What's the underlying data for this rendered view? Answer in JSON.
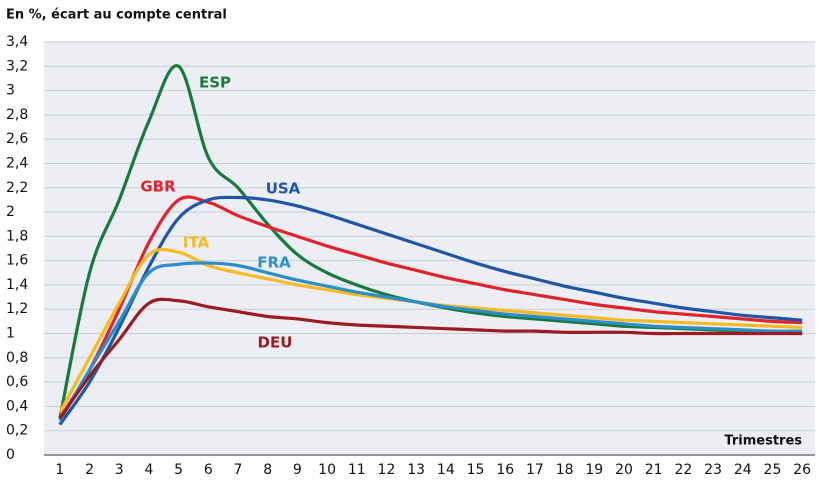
{
  "chart_data": {
    "type": "line",
    "title": "En %, écart au compte central",
    "x_label": "Trimestres",
    "categories": [
      "1",
      "2",
      "3",
      "4",
      "5",
      "6",
      "7",
      "8",
      "9",
      "10",
      "11",
      "12",
      "13",
      "14",
      "15",
      "16",
      "17",
      "18",
      "19",
      "20",
      "21",
      "22",
      "23",
      "24",
      "25",
      "26"
    ],
    "ylim": [
      0,
      3.4
    ],
    "yticks": [
      0,
      {
        "value": 0.2,
        "label": "0,2"
      },
      {
        "value": 0.4,
        "label": "0,4"
      },
      {
        "value": 0.6,
        "label": "0,6"
      },
      {
        "value": 0.8,
        "label": "0,8"
      },
      1,
      {
        "value": 1.2,
        "label": "1,2"
      },
      {
        "value": 1.4,
        "label": "1,4"
      },
      {
        "value": 1.6,
        "label": "1,6"
      },
      {
        "value": 1.8,
        "label": "1,8"
      },
      2,
      {
        "value": 2.2,
        "label": "2,2"
      },
      {
        "value": 2.4,
        "label": "2,4"
      },
      {
        "value": 2.6,
        "label": "2,6"
      },
      {
        "value": 2.8,
        "label": "2,8"
      },
      3,
      {
        "value": 3.2,
        "label": "3,2"
      },
      {
        "value": 3.4,
        "label": "3,4"
      }
    ],
    "grid": true,
    "series": [
      {
        "name": "ESP",
        "color": "#1a7a3c",
        "values": [
          0.3,
          1.5,
          2.1,
          2.75,
          3.2,
          2.45,
          2.2,
          1.9,
          1.65,
          1.5,
          1.4,
          1.32,
          1.26,
          1.21,
          1.17,
          1.14,
          1.12,
          1.1,
          1.08,
          1.06,
          1.05,
          1.04,
          1.03,
          1.02,
          1.01,
          1.0
        ]
      },
      {
        "name": "GBR",
        "color": "#e3232b",
        "values": [
          0.3,
          0.7,
          1.2,
          1.75,
          2.1,
          2.08,
          1.97,
          1.88,
          1.8,
          1.72,
          1.65,
          1.58,
          1.52,
          1.46,
          1.41,
          1.36,
          1.32,
          1.28,
          1.24,
          1.21,
          1.18,
          1.16,
          1.14,
          1.12,
          1.1,
          1.09
        ]
      },
      {
        "name": "USA",
        "color": "#1f57a5",
        "values": [
          0.25,
          0.6,
          1.05,
          1.55,
          1.95,
          2.1,
          2.12,
          2.1,
          2.05,
          1.98,
          1.9,
          1.82,
          1.74,
          1.66,
          1.58,
          1.51,
          1.45,
          1.39,
          1.34,
          1.29,
          1.25,
          1.21,
          1.18,
          1.15,
          1.13,
          1.11
        ]
      },
      {
        "name": "ITA",
        "color": "#f6bb22",
        "values": [
          0.35,
          0.8,
          1.25,
          1.65,
          1.67,
          1.56,
          1.5,
          1.45,
          1.4,
          1.36,
          1.32,
          1.29,
          1.26,
          1.23,
          1.21,
          1.19,
          1.17,
          1.15,
          1.13,
          1.11,
          1.1,
          1.09,
          1.08,
          1.07,
          1.06,
          1.05
        ]
      },
      {
        "name": "FRA",
        "color": "#2b8fcb",
        "values": [
          0.28,
          0.7,
          1.1,
          1.5,
          1.57,
          1.58,
          1.56,
          1.5,
          1.44,
          1.39,
          1.34,
          1.3,
          1.26,
          1.22,
          1.19,
          1.16,
          1.14,
          1.12,
          1.1,
          1.08,
          1.06,
          1.05,
          1.04,
          1.03,
          1.02,
          1.02
        ]
      },
      {
        "name": "DEU",
        "color": "#9b1b20",
        "values": [
          0.3,
          0.65,
          0.95,
          1.25,
          1.27,
          1.22,
          1.18,
          1.14,
          1.12,
          1.09,
          1.07,
          1.06,
          1.05,
          1.04,
          1.03,
          1.02,
          1.02,
          1.01,
          1.01,
          1.01,
          1.0,
          1.0,
          1.0,
          1.0,
          1.0,
          1.0
        ]
      }
    ]
  }
}
